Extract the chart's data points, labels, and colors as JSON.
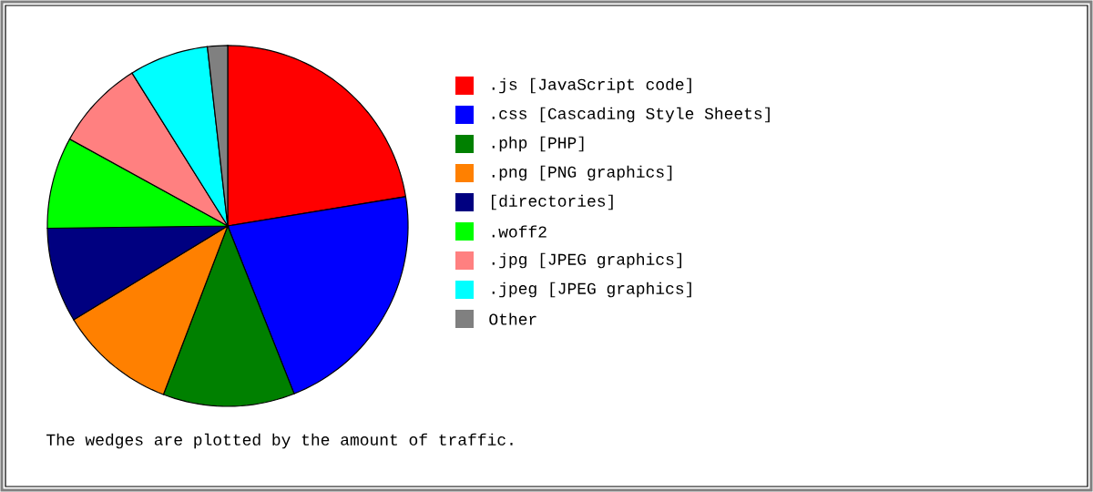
{
  "chart_data": {
    "type": "pie",
    "categories": [
      ".js [JavaScript code]",
      ".css [Cascading Style Sheets]",
      ".php [PHP]",
      ".png [PNG graphics]",
      "[directories]",
      ".woff2",
      ".jpg [JPEG graphics]",
      ".jpeg [JPEG graphics]",
      "Other"
    ],
    "values": [
      22.4,
      21.6,
      11.8,
      10.5,
      8.5,
      8.2,
      8.1,
      7.1,
      1.8
    ],
    "colors": [
      "#ff0000",
      "#0000ff",
      "#008000",
      "#ff8000",
      "#000080",
      "#00ff00",
      "#ff8080",
      "#00ffff",
      "#808080"
    ],
    "legend": "right",
    "annotations": [
      "The wedges are plotted by the amount of traffic."
    ]
  }
}
